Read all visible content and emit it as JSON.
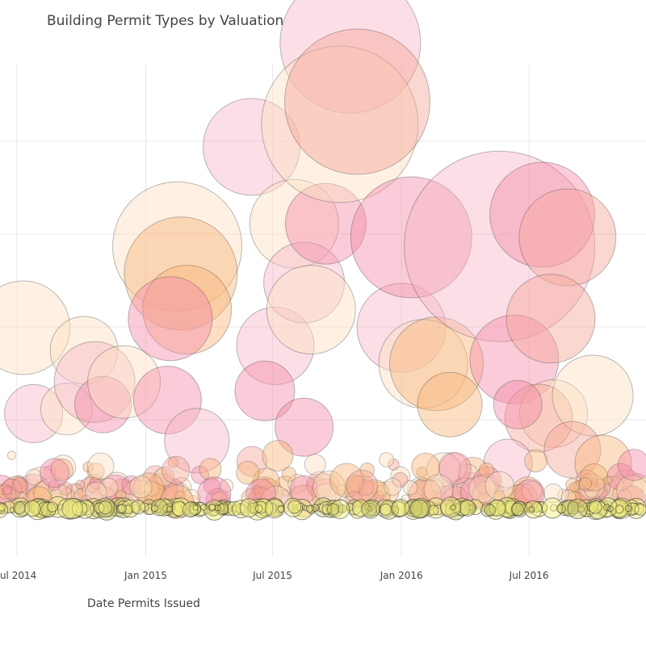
{
  "chart_data": {
    "type": "scatter",
    "title": "Building Permit Types by Valuation",
    "xlabel": "Date Permits Issued",
    "ylabel": "",
    "x_ticks": [
      "Jul 2014",
      "Jan 2015",
      "Jul 2015",
      "Jan 2016",
      "Jul 2016"
    ],
    "x_range": [
      "2014-06-07",
      "2016-12-15"
    ],
    "grid": true,
    "legend": "none",
    "colors": {
      "peach": "#fde0c0",
      "orange": "#f8b67a",
      "pink": "#f7b6c8",
      "hotpink": "#f38ba8",
      "salmon": "#f6a69a",
      "yellow": "#f2ee7e",
      "olive": "#c9c96a",
      "gridline": "#e8e8e8",
      "marker_edge": "#555555"
    },
    "large_points": [
      {
        "x": "2014-07-10",
        "y": 4.0,
        "size": 58,
        "color": "peach"
      },
      {
        "x": "2014-07-25",
        "y": 2.1,
        "size": 36,
        "color": "pink"
      },
      {
        "x": "2014-09-10",
        "y": 2.2,
        "size": 32,
        "color": "peach"
      },
      {
        "x": "2014-10-05",
        "y": 3.5,
        "size": 42,
        "color": "peach"
      },
      {
        "x": "2014-10-20",
        "y": 2.8,
        "size": 50,
        "color": "pink"
      },
      {
        "x": "2014-11-01",
        "y": 2.3,
        "size": 35,
        "color": "hotpink"
      },
      {
        "x": "2014-12-01",
        "y": 2.8,
        "size": 45,
        "color": "peach"
      },
      {
        "x": "2014-11-20",
        "y": 0.5,
        "size": 17,
        "color": "peach"
      },
      {
        "x": "2015-02-15",
        "y": 5.8,
        "size": 80,
        "color": "peach"
      },
      {
        "x": "2015-02-20",
        "y": 5.2,
        "size": 70,
        "color": "orange"
      },
      {
        "x": "2015-03-01",
        "y": 4.4,
        "size": 55,
        "color": "orange"
      },
      {
        "x": "2015-02-05",
        "y": 4.2,
        "size": 52,
        "color": "hotpink"
      },
      {
        "x": "2015-02-01",
        "y": 2.4,
        "size": 42,
        "color": "hotpink"
      },
      {
        "x": "2015-03-15",
        "y": 1.5,
        "size": 40,
        "color": "pink"
      },
      {
        "x": "2015-06-01",
        "y": 8.0,
        "size": 60,
        "color": "pink"
      },
      {
        "x": "2015-07-05",
        "y": 3.6,
        "size": 48,
        "color": "pink"
      },
      {
        "x": "2015-06-20",
        "y": 2.6,
        "size": 37,
        "color": "hotpink"
      },
      {
        "x": "2015-08-01",
        "y": 6.3,
        "size": 55,
        "color": "peach"
      },
      {
        "x": "2015-08-15",
        "y": 5.0,
        "size": 50,
        "color": "pink"
      },
      {
        "x": "2015-08-25",
        "y": 4.4,
        "size": 55,
        "color": "peach"
      },
      {
        "x": "2015-09-15",
        "y": 6.3,
        "size": 50,
        "color": "hotpink"
      },
      {
        "x": "2015-10-20",
        "y": 10.3,
        "size": 87,
        "color": "pink"
      },
      {
        "x": "2015-10-05",
        "y": 8.5,
        "size": 97,
        "color": "peach"
      },
      {
        "x": "2015-10-30",
        "y": 9.0,
        "size": 90,
        "color": "salmon"
      },
      {
        "x": "2015-08-15",
        "y": 1.8,
        "size": 36,
        "color": "hotpink"
      },
      {
        "x": "2016-01-01",
        "y": 4.0,
        "size": 55,
        "color": "pink"
      },
      {
        "x": "2016-01-15",
        "y": 6.0,
        "size": 75,
        "color": "hotpink"
      },
      {
        "x": "2016-02-01",
        "y": 3.2,
        "size": 55,
        "color": "peach"
      },
      {
        "x": "2016-02-20",
        "y": 3.2,
        "size": 58,
        "color": "orange"
      },
      {
        "x": "2016-03-10",
        "y": 2.3,
        "size": 40,
        "color": "orange"
      },
      {
        "x": "2016-05-20",
        "y": 5.8,
        "size": 118,
        "color": "pink"
      },
      {
        "x": "2016-06-10",
        "y": 3.3,
        "size": 55,
        "color": "hotpink"
      },
      {
        "x": "2016-07-20",
        "y": 6.5,
        "size": 65,
        "color": "hotpink"
      },
      {
        "x": "2016-08-25",
        "y": 6.0,
        "size": 60,
        "color": "salmon"
      },
      {
        "x": "2016-08-01",
        "y": 4.2,
        "size": 55,
        "color": "salmon"
      },
      {
        "x": "2016-08-05",
        "y": 2.1,
        "size": 42,
        "color": "peach"
      },
      {
        "x": "2016-07-15",
        "y": 2.0,
        "size": 42,
        "color": "salmon"
      },
      {
        "x": "2016-06-15",
        "y": 2.3,
        "size": 30,
        "color": "hotpink"
      },
      {
        "x": "2016-06-01",
        "y": 1.0,
        "size": 30,
        "color": "pink"
      },
      {
        "x": "2016-09-30",
        "y": 2.5,
        "size": 50,
        "color": "peach"
      },
      {
        "x": "2016-09-01",
        "y": 1.3,
        "size": 35,
        "color": "salmon"
      },
      {
        "x": "2016-10-15",
        "y": 1.0,
        "size": 35,
        "color": "orange"
      }
    ]
  }
}
